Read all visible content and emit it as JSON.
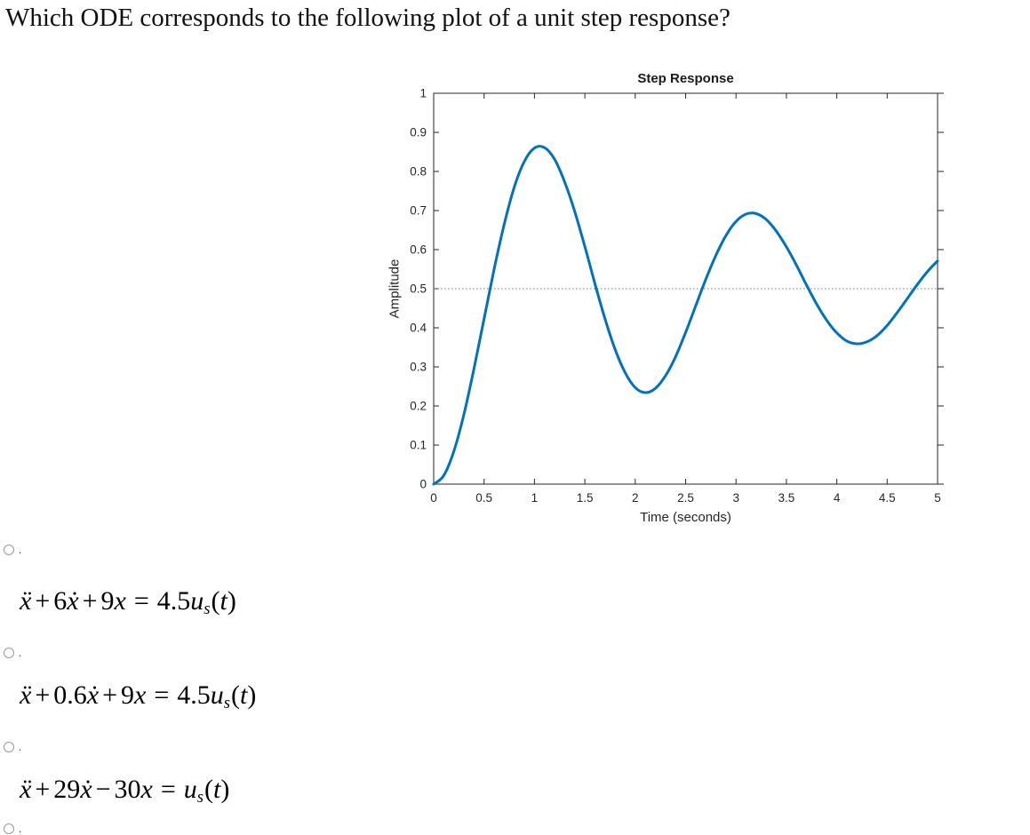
{
  "question": "Which ODE corresponds to the following plot of a unit step response?",
  "chart_data": {
    "type": "line",
    "title": "Step Response",
    "xlabel": "Time (seconds)",
    "ylabel": "Amplitude",
    "xlim": [
      0,
      5
    ],
    "ylim": [
      0,
      1
    ],
    "x_ticks": [
      "0",
      "0.5",
      "1",
      "1.5",
      "2",
      "2.5",
      "3",
      "3.5",
      "4",
      "4.5",
      "5"
    ],
    "y_ticks": [
      "0",
      "0.1",
      "0.2",
      "0.3",
      "0.4",
      "0.5",
      "0.6",
      "0.7",
      "0.8",
      "0.9",
      "1"
    ],
    "reference_line_y": 0.5,
    "line_color": "#0072BD",
    "grid": false,
    "legend": "none",
    "series": [
      {
        "name": "unit step response",
        "x": [
          0,
          0.1,
          0.2,
          0.3,
          0.4,
          0.5,
          0.6,
          0.7,
          0.8,
          0.9,
          1,
          1.1,
          1.2,
          1.3,
          1.4,
          1.5,
          1.6,
          1.7,
          1.8,
          1.9,
          2,
          2.1,
          2.2,
          2.3,
          2.4,
          2.5,
          2.6,
          2.7,
          2.8,
          2.9,
          3,
          3.1,
          3.2,
          3.3,
          3.4,
          3.5,
          3.6,
          3.7,
          3.8,
          3.9,
          4,
          4.1,
          4.2,
          4.3,
          4.4,
          4.5,
          4.6,
          4.7,
          4.8,
          4.9,
          5
        ],
        "y": [
          0,
          0.022,
          0.084,
          0.178,
          0.296,
          0.423,
          0.55,
          0.665,
          0.76,
          0.826,
          0.86,
          0.861,
          0.831,
          0.773,
          0.697,
          0.608,
          0.513,
          0.423,
          0.345,
          0.285,
          0.247,
          0.234,
          0.245,
          0.277,
          0.326,
          0.388,
          0.456,
          0.524,
          0.585,
          0.636,
          0.672,
          0.691,
          0.692,
          0.677,
          0.647,
          0.607,
          0.56,
          0.509,
          0.461,
          0.419,
          0.387,
          0.366,
          0.359,
          0.364,
          0.38,
          0.406,
          0.439,
          0.475,
          0.511,
          0.544,
          0.571
        ]
      }
    ]
  },
  "options": [
    {
      "marker": ".",
      "text": "ẍ + 6ẋ + 9x = 4.5uₛ(t)",
      "tokens": [
        {
          "t": "ẍ",
          "s": "i"
        },
        {
          "t": "+",
          "s": "op"
        },
        {
          "t": "6",
          "s": "r"
        },
        {
          "t": "ẋ",
          "s": "i"
        },
        {
          "t": "+",
          "s": "op"
        },
        {
          "t": "9",
          "s": "r"
        },
        {
          "t": "x",
          "s": "i"
        },
        {
          "t": "=",
          "s": "rel"
        },
        {
          "t": "4.5",
          "s": "r"
        },
        {
          "t": "u",
          "s": "i"
        },
        {
          "t": "s",
          "s": "sub"
        },
        {
          "t": "(",
          "s": "par"
        },
        {
          "t": "t",
          "s": "i"
        },
        {
          "t": ")",
          "s": "par"
        }
      ]
    },
    {
      "marker": ".",
      "text": "ẍ + 0.6ẋ + 9x = 4.5uₛ(t)",
      "tokens": [
        {
          "t": "ẍ",
          "s": "i"
        },
        {
          "t": "+",
          "s": "op"
        },
        {
          "t": "0.6",
          "s": "r"
        },
        {
          "t": "ẋ",
          "s": "i"
        },
        {
          "t": "+",
          "s": "op"
        },
        {
          "t": "9",
          "s": "r"
        },
        {
          "t": "x",
          "s": "i"
        },
        {
          "t": "=",
          "s": "rel"
        },
        {
          "t": "4.5",
          "s": "r"
        },
        {
          "t": "u",
          "s": "i"
        },
        {
          "t": "s",
          "s": "sub"
        },
        {
          "t": "(",
          "s": "par"
        },
        {
          "t": "t",
          "s": "i"
        },
        {
          "t": ")",
          "s": "par"
        }
      ]
    },
    {
      "marker": ".",
      "text": "ẍ + 29ẋ − 30x = uₛ(t)",
      "tokens": [
        {
          "t": "ẍ",
          "s": "i"
        },
        {
          "t": "+",
          "s": "op"
        },
        {
          "t": "29",
          "s": "r"
        },
        {
          "t": "ẋ",
          "s": "i"
        },
        {
          "t": "−",
          "s": "op"
        },
        {
          "t": "30",
          "s": "r"
        },
        {
          "t": "x",
          "s": "i"
        },
        {
          "t": "=",
          "s": "rel"
        },
        {
          "t": "u",
          "s": "i"
        },
        {
          "t": "s",
          "s": "sub"
        },
        {
          "t": "(",
          "s": "par"
        },
        {
          "t": "t",
          "s": "i"
        },
        {
          "t": ")",
          "s": "par"
        }
      ]
    },
    {
      "marker": ".",
      "text": "",
      "tokens": []
    }
  ]
}
